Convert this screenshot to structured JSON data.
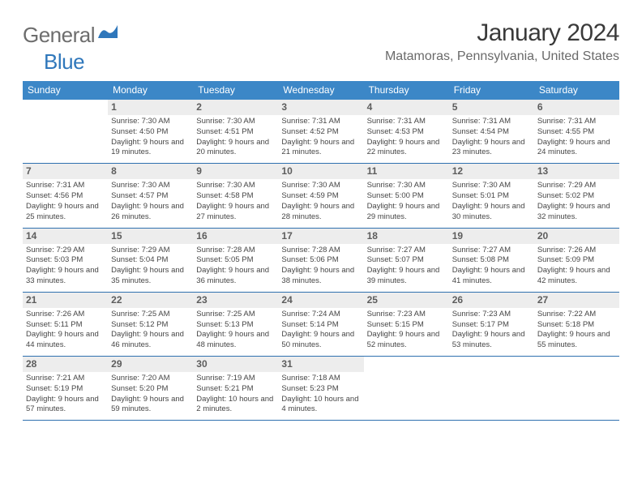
{
  "brand": {
    "name1": "General",
    "name2": "Blue"
  },
  "title": "January 2024",
  "location": "Matamoras, Pennsylvania, United States",
  "header_bg": "#3c87c7",
  "divider_color": "#2f70af",
  "daynum_bg": "#ededed",
  "text_color": "#464646",
  "weekdays": [
    "Sunday",
    "Monday",
    "Tuesday",
    "Wednesday",
    "Thursday",
    "Friday",
    "Saturday"
  ],
  "weeks": [
    [
      null,
      {
        "n": "1",
        "sr": "7:30 AM",
        "ss": "4:50 PM",
        "dl": "9 hours and 19 minutes."
      },
      {
        "n": "2",
        "sr": "7:30 AM",
        "ss": "4:51 PM",
        "dl": "9 hours and 20 minutes."
      },
      {
        "n": "3",
        "sr": "7:31 AM",
        "ss": "4:52 PM",
        "dl": "9 hours and 21 minutes."
      },
      {
        "n": "4",
        "sr": "7:31 AM",
        "ss": "4:53 PM",
        "dl": "9 hours and 22 minutes."
      },
      {
        "n": "5",
        "sr": "7:31 AM",
        "ss": "4:54 PM",
        "dl": "9 hours and 23 minutes."
      },
      {
        "n": "6",
        "sr": "7:31 AM",
        "ss": "4:55 PM",
        "dl": "9 hours and 24 minutes."
      }
    ],
    [
      {
        "n": "7",
        "sr": "7:31 AM",
        "ss": "4:56 PM",
        "dl": "9 hours and 25 minutes."
      },
      {
        "n": "8",
        "sr": "7:30 AM",
        "ss": "4:57 PM",
        "dl": "9 hours and 26 minutes."
      },
      {
        "n": "9",
        "sr": "7:30 AM",
        "ss": "4:58 PM",
        "dl": "9 hours and 27 minutes."
      },
      {
        "n": "10",
        "sr": "7:30 AM",
        "ss": "4:59 PM",
        "dl": "9 hours and 28 minutes."
      },
      {
        "n": "11",
        "sr": "7:30 AM",
        "ss": "5:00 PM",
        "dl": "9 hours and 29 minutes."
      },
      {
        "n": "12",
        "sr": "7:30 AM",
        "ss": "5:01 PM",
        "dl": "9 hours and 30 minutes."
      },
      {
        "n": "13",
        "sr": "7:29 AM",
        "ss": "5:02 PM",
        "dl": "9 hours and 32 minutes."
      }
    ],
    [
      {
        "n": "14",
        "sr": "7:29 AM",
        "ss": "5:03 PM",
        "dl": "9 hours and 33 minutes."
      },
      {
        "n": "15",
        "sr": "7:29 AM",
        "ss": "5:04 PM",
        "dl": "9 hours and 35 minutes."
      },
      {
        "n": "16",
        "sr": "7:28 AM",
        "ss": "5:05 PM",
        "dl": "9 hours and 36 minutes."
      },
      {
        "n": "17",
        "sr": "7:28 AM",
        "ss": "5:06 PM",
        "dl": "9 hours and 38 minutes."
      },
      {
        "n": "18",
        "sr": "7:27 AM",
        "ss": "5:07 PM",
        "dl": "9 hours and 39 minutes."
      },
      {
        "n": "19",
        "sr": "7:27 AM",
        "ss": "5:08 PM",
        "dl": "9 hours and 41 minutes."
      },
      {
        "n": "20",
        "sr": "7:26 AM",
        "ss": "5:09 PM",
        "dl": "9 hours and 42 minutes."
      }
    ],
    [
      {
        "n": "21",
        "sr": "7:26 AM",
        "ss": "5:11 PM",
        "dl": "9 hours and 44 minutes."
      },
      {
        "n": "22",
        "sr": "7:25 AM",
        "ss": "5:12 PM",
        "dl": "9 hours and 46 minutes."
      },
      {
        "n": "23",
        "sr": "7:25 AM",
        "ss": "5:13 PM",
        "dl": "9 hours and 48 minutes."
      },
      {
        "n": "24",
        "sr": "7:24 AM",
        "ss": "5:14 PM",
        "dl": "9 hours and 50 minutes."
      },
      {
        "n": "25",
        "sr": "7:23 AM",
        "ss": "5:15 PM",
        "dl": "9 hours and 52 minutes."
      },
      {
        "n": "26",
        "sr": "7:23 AM",
        "ss": "5:17 PM",
        "dl": "9 hours and 53 minutes."
      },
      {
        "n": "27",
        "sr": "7:22 AM",
        "ss": "5:18 PM",
        "dl": "9 hours and 55 minutes."
      }
    ],
    [
      {
        "n": "28",
        "sr": "7:21 AM",
        "ss": "5:19 PM",
        "dl": "9 hours and 57 minutes."
      },
      {
        "n": "29",
        "sr": "7:20 AM",
        "ss": "5:20 PM",
        "dl": "9 hours and 59 minutes."
      },
      {
        "n": "30",
        "sr": "7:19 AM",
        "ss": "5:21 PM",
        "dl": "10 hours and 2 minutes."
      },
      {
        "n": "31",
        "sr": "7:18 AM",
        "ss": "5:23 PM",
        "dl": "10 hours and 4 minutes."
      },
      null,
      null,
      null
    ]
  ],
  "labels": {
    "sunrise": "Sunrise:",
    "sunset": "Sunset:",
    "daylight": "Daylight:"
  }
}
